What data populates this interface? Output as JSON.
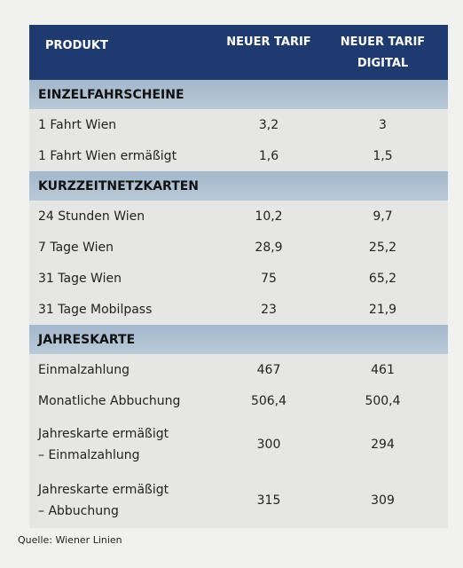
{
  "header": {
    "columns": [
      "PRODUKT",
      "NEUER TARIF",
      "NEUER TARIF\nDIGITAL"
    ]
  },
  "sections": [
    {
      "title": "EINZELFAHRSCHEINE",
      "rows": [
        [
          "1 Fahrt Wien",
          "3,2",
          "3"
        ],
        [
          "1 Fahrt Wien ermäßigt",
          "1,6",
          "1,5"
        ]
      ]
    },
    {
      "title": "KURZZEITNETZKARTEN",
      "rows": [
        [
          "24 Stunden Wien",
          "10,2",
          "9,7"
        ],
        [
          "7 Tage Wien",
          "28,9",
          "25,2"
        ],
        [
          "31 Tage Wien",
          "75",
          "65,2"
        ],
        [
          "31 Tage Mobilpass",
          "23",
          "21,9"
        ]
      ]
    },
    {
      "title": "JAHRESKARTE",
      "rows": [
        [
          "Einmalzahlung",
          "467",
          "461"
        ],
        [
          "Monatliche Abbuchung",
          "506,4",
          "500,4"
        ],
        [
          "Jahreskarte ermäßigt\n– Einmalzahlung",
          "300",
          "294"
        ],
        [
          "Jahreskarte ermäßigt\n– Abbuchung",
          "315",
          "309"
        ]
      ]
    }
  ],
  "source": "Quelle: Wiener Linien"
}
